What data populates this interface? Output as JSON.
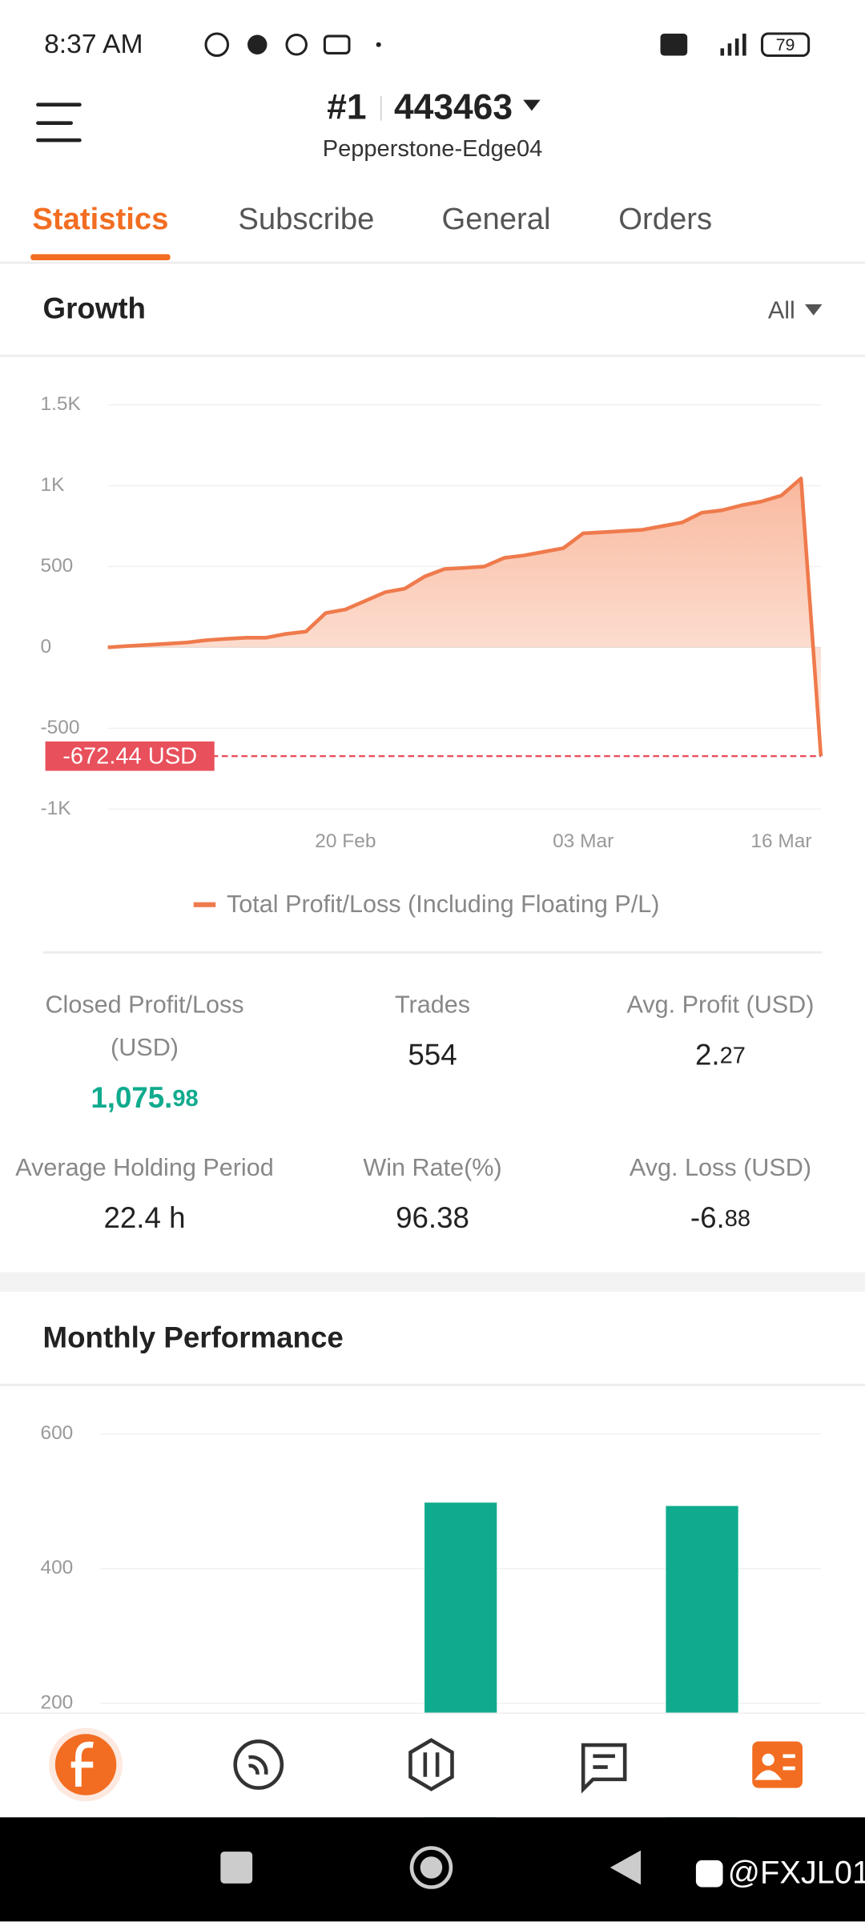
{
  "status_bar": {
    "time": "8:37 AM",
    "battery": "79"
  },
  "header": {
    "rank": "#1",
    "account": "443463",
    "server": "Pepperstone-Edge04"
  },
  "tabs": [
    "Statistics",
    "Subscribe",
    "General",
    "Orders"
  ],
  "growth": {
    "title": "Growth",
    "filter": "All",
    "type": "line",
    "series": [
      {
        "name": "Total Profit/Loss (Including Floating P/L)",
        "color": "#ef7a4c",
        "values": [
          0,
          8,
          15,
          23,
          30,
          45,
          53,
          60,
          60,
          83,
          98,
          212,
          235,
          288,
          341,
          364,
          439,
          485,
          492,
          500,
          553,
          568,
          591,
          614,
          705,
          712,
          720,
          727,
          750,
          773,
          833,
          848,
          879,
          902,
          939,
          1045,
          -672.44
        ]
      }
    ],
    "xlim": [
      0,
      36
    ],
    "xticks": [
      {
        "value": 12,
        "label": "20 Feb"
      },
      {
        "value": 24,
        "label": "03 Mar"
      },
      {
        "value": 34,
        "label": "16 Mar"
      }
    ],
    "ylim": [
      -1000,
      1500
    ],
    "yticks": [
      {
        "value": 1500,
        "label": "1.5K"
      },
      {
        "value": 1000,
        "label": "1K"
      },
      500,
      0,
      -500,
      {
        "value": -1000,
        "label": "-1K"
      }
    ],
    "grid": true,
    "reference": {
      "value": -672.44,
      "value_label": "-672.44 USD",
      "color": "#e8505b"
    }
  },
  "stats": [
    {
      "label": [
        "Closed Profit/Loss",
        "(USD)"
      ],
      "value": {
        "main": "1,075.",
        "decimal": "98"
      }
    },
    {
      "label": [
        "Trades"
      ],
      "value": {
        "main": "554"
      }
    },
    {
      "label": [
        "Avg. Profit (USD)"
      ],
      "value": {
        "main": "2.",
        "decimal": "27"
      }
    },
    {
      "label": [
        "Average Holding Period"
      ],
      "value": {
        "main": "22.4 h"
      }
    },
    {
      "label": [
        "Win Rate(%)"
      ],
      "value": {
        "main": "96.38"
      }
    },
    {
      "label": [
        "Avg. Loss (USD)"
      ],
      "value": {
        "main": "-6.",
        "decimal": "88"
      }
    }
  ],
  "monthly": {
    "title": "Monthly Performance",
    "type": "bar",
    "categories": [
      null,
      null,
      null
    ],
    "values": [
      null,
      498,
      493
    ],
    "color": "#10ab8e",
    "ylim": [
      0,
      600
    ],
    "yticks": [
      200,
      400,
      600
    ],
    "grid": true
  },
  "watermark": "@FXJL01"
}
